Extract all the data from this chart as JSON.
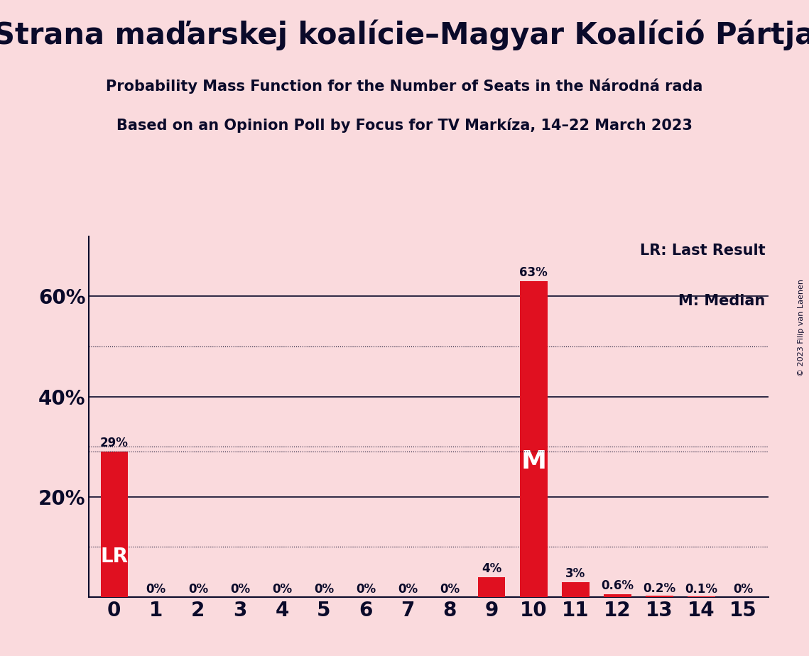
{
  "title_real": "Strana maďarskej koalície–Magyar Koalíció Pártja",
  "subtitle1": "Probability Mass Function for the Number of Seats in the Národná rada",
  "subtitle2": "Based on an Opinion Poll by Focus for TV Markíza, 14–22 March 2023",
  "copyright": "© 2023 Filip van Laenen",
  "categories": [
    0,
    1,
    2,
    3,
    4,
    5,
    6,
    7,
    8,
    9,
    10,
    11,
    12,
    13,
    14,
    15
  ],
  "values": [
    0.29,
    0.0,
    0.0,
    0.0,
    0.0,
    0.0,
    0.0,
    0.0,
    0.0,
    0.04,
    0.63,
    0.03,
    0.006,
    0.002,
    0.001,
    0.0
  ],
  "bar_labels": [
    "29%",
    "0%",
    "0%",
    "0%",
    "0%",
    "0%",
    "0%",
    "0%",
    "0%",
    "4%",
    "63%",
    "3%",
    "0.6%",
    "0.2%",
    "0.1%",
    "0%"
  ],
  "bar_color": "#e01020",
  "background_color": "#fadadd",
  "text_color": "#0a0a2a",
  "lr_bar": 0,
  "median_bar": 10,
  "ylabel_ticks": [
    0.0,
    0.2,
    0.4,
    0.6
  ],
  "ylabel_labels": [
    "",
    "20%",
    "40%",
    "60%"
  ],
  "ylim": [
    0,
    0.72
  ],
  "dotted_gridlines": [
    0.1,
    0.3,
    0.5
  ],
  "solid_gridlines": [
    0.2,
    0.4,
    0.6
  ],
  "lr_dotted": 0.29,
  "legend_lr": "LR: Last Result",
  "legend_m": "M: Median"
}
